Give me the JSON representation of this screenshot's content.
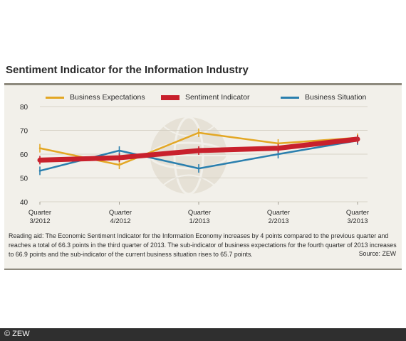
{
  "title": "Sentiment Indicator for the Information Industry",
  "caption": "Reading aid: The Economic Sentiment Indicator for the Information Economy increases by 4 points compared to the previous quarter and reaches a total of 66.3 points in the third quarter of 2013. The sub-indicator of business expectations for the fourth quarter of 2013 increases to 66.9 points and the sub-indicator of the current business situation rises to 65.7 points.",
  "source": "Source: ZEW",
  "footer": "© ZEW",
  "colors": {
    "business_expectations": "#e3a724",
    "sentiment_indicator": "#c8202c",
    "business_situation": "#2a7fae"
  },
  "chart_data": {
    "type": "line",
    "title": "Sentiment Indicator for the Information Industry",
    "categories": [
      "Quarter 3/2012",
      "Quarter 4/2012",
      "Quarter 1/2013",
      "Quarter 2/2013",
      "Quarter 3/2013"
    ],
    "category_lines": [
      [
        "Quarter",
        "3/2012"
      ],
      [
        "Quarter",
        "4/2012"
      ],
      [
        "Quarter",
        "1/2013"
      ],
      [
        "Quarter",
        "2/2013"
      ],
      [
        "Quarter",
        "3/2013"
      ]
    ],
    "ylim": [
      40,
      80
    ],
    "yticks": [
      40,
      50,
      60,
      70,
      80
    ],
    "legend_position": "top",
    "series": [
      {
        "name": "Business Expectations",
        "color": "#e3a724",
        "values": [
          62.5,
          55.5,
          69.0,
          64.5,
          66.9
        ]
      },
      {
        "name": "Sentiment Indicator",
        "color": "#c8202c",
        "values": [
          57.5,
          58.5,
          61.5,
          62.5,
          66.3
        ]
      },
      {
        "name": "Business Situation",
        "color": "#2a7fae",
        "values": [
          53.0,
          61.5,
          54.0,
          60.0,
          65.7
        ]
      }
    ]
  }
}
